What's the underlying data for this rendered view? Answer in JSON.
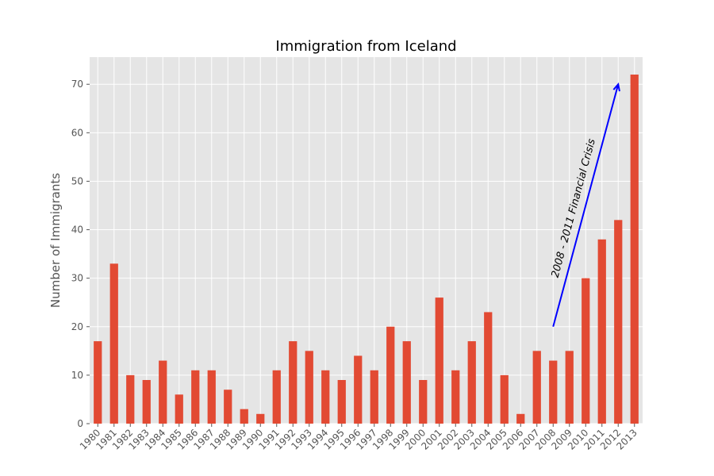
{
  "chart_data": {
    "type": "bar",
    "title": "Immigration from Iceland",
    "xlabel": "",
    "ylabel": "Number of Immigrants",
    "categories": [
      "1980",
      "1981",
      "1982",
      "1983",
      "1984",
      "1985",
      "1986",
      "1987",
      "1988",
      "1989",
      "1990",
      "1991",
      "1992",
      "1993",
      "1994",
      "1995",
      "1996",
      "1997",
      "1998",
      "1999",
      "2000",
      "2001",
      "2002",
      "2003",
      "2004",
      "2005",
      "2006",
      "2007",
      "2008",
      "2009",
      "2010",
      "2011",
      "2012",
      "2013"
    ],
    "values": [
      17,
      33,
      10,
      9,
      13,
      6,
      11,
      11,
      7,
      3,
      2,
      11,
      17,
      15,
      11,
      9,
      14,
      11,
      20,
      17,
      9,
      26,
      11,
      17,
      23,
      10,
      2,
      15,
      13,
      15,
      30,
      38,
      42,
      72
    ],
    "ylim": [
      0,
      75.6
    ],
    "yticks": [
      0,
      10,
      20,
      30,
      40,
      50,
      60,
      70
    ],
    "grid": true,
    "colors": {
      "bar": "#E24A33",
      "plot_bg": "#E5E5E5",
      "grid": "#FFFFFF",
      "arrow": "#0000FF"
    },
    "annotation": {
      "text": "2008 - 2011 Financial Crisis",
      "arrow_from": {
        "x": "2008",
        "y": 20
      },
      "arrow_to": {
        "x": "2012",
        "y": 70
      }
    }
  }
}
